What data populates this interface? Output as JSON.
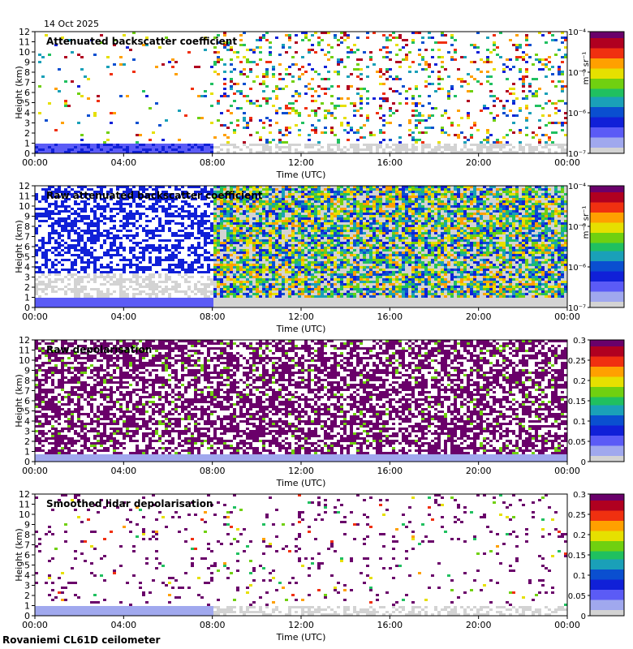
{
  "date": "14 Oct 2025",
  "footer": "Rovaniemi CL61D ceilometer",
  "colorscale": [
    "#d3d3d3",
    "#a0a8ee",
    "#5b5bf6",
    "#1020d8",
    "#0a4fd0",
    "#1aa0b8",
    "#20c060",
    "#70d010",
    "#e6e000",
    "#ffa000",
    "#f03010",
    "#b00020",
    "#6a006a"
  ],
  "chart_data": [
    {
      "type": "heatmap",
      "title": "Attenuated backscatter coefficient",
      "xlabel": "Time (UTC)",
      "ylabel": "Height (km)",
      "x_ticks": [
        "00:00",
        "04:00",
        "08:00",
        "12:00",
        "16:00",
        "20:00",
        "00:00"
      ],
      "y_ticks": [
        "0",
        "1",
        "2",
        "3",
        "4",
        "5",
        "6",
        "7",
        "8",
        "9",
        "10",
        "11",
        "12"
      ],
      "ylim": [
        0,
        12
      ],
      "colorbar": {
        "scale": "log",
        "label": "m⁻¹ sr⁻¹",
        "ticks": [
          "10⁻⁴",
          "10⁻⁵",
          "10⁻⁶",
          "10⁻⁷"
        ]
      }
    },
    {
      "type": "heatmap",
      "title": "Raw attenuated backscatter coefficient",
      "xlabel": "Time (UTC)",
      "ylabel": "Height (km)",
      "x_ticks": [
        "00:00",
        "04:00",
        "08:00",
        "12:00",
        "16:00",
        "20:00",
        "00:00"
      ],
      "y_ticks": [
        "0",
        "1",
        "2",
        "3",
        "4",
        "5",
        "6",
        "7",
        "8",
        "9",
        "10",
        "11",
        "12"
      ],
      "ylim": [
        0,
        12
      ],
      "colorbar": {
        "scale": "log",
        "label": "m⁻¹ sr⁻¹",
        "ticks": [
          "10⁻⁴",
          "10⁻⁵",
          "10⁻⁶",
          "10⁻⁷"
        ]
      }
    },
    {
      "type": "heatmap",
      "title": "Raw depolarisation",
      "xlabel": "Time (UTC)",
      "ylabel": "Height (km)",
      "x_ticks": [
        "00:00",
        "04:00",
        "08:00",
        "12:00",
        "16:00",
        "20:00",
        "00:00"
      ],
      "y_ticks": [
        "0",
        "1",
        "2",
        "3",
        "4",
        "5",
        "6",
        "7",
        "8",
        "9",
        "10",
        "11",
        "12"
      ],
      "ylim": [
        0,
        12
      ],
      "colorbar": {
        "scale": "linear",
        "label": "",
        "ticks": [
          "0.3",
          "0.25",
          "0.2",
          "0.15",
          "0.1",
          "0.05",
          "0"
        ]
      }
    },
    {
      "type": "heatmap",
      "title": "Smoothed lidar depolarisation",
      "xlabel": "Time (UTC)",
      "ylabel": "Height (km)",
      "x_ticks": [
        "00:00",
        "04:00",
        "08:00",
        "12:00",
        "16:00",
        "20:00",
        "00:00"
      ],
      "y_ticks": [
        "0",
        "1",
        "2",
        "3",
        "4",
        "5",
        "6",
        "7",
        "8",
        "9",
        "10",
        "11",
        "12"
      ],
      "ylim": [
        0,
        12
      ],
      "colorbar": {
        "scale": "linear",
        "label": "",
        "ticks": [
          "0.3",
          "0.25",
          "0.2",
          "0.15",
          "0.1",
          "0.05",
          "0"
        ]
      }
    }
  ]
}
